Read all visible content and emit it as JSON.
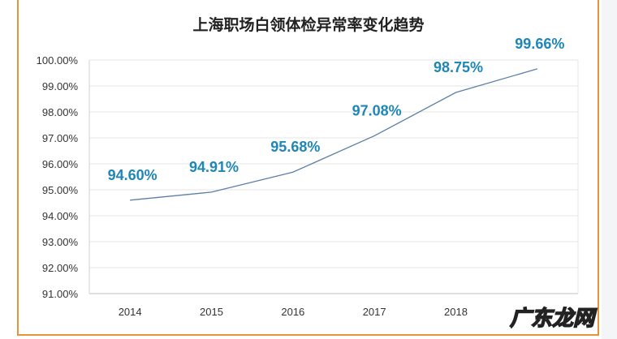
{
  "chart_data": {
    "type": "line",
    "title": "上海职场白领体检异常率变化趋势",
    "categories": [
      "2014",
      "2015",
      "2016",
      "2017",
      "2018",
      ""
    ],
    "values": [
      94.6,
      94.91,
      95.68,
      97.08,
      98.75,
      99.66
    ],
    "data_labels": [
      "94.60%",
      "94.91%",
      "95.68%",
      "97.08%",
      "98.75%",
      "99.66%"
    ],
    "yticks": [
      "91.00%",
      "92.00%",
      "93.00%",
      "94.00%",
      "95.00%",
      "96.00%",
      "97.00%",
      "98.00%",
      "99.00%",
      "100.00%"
    ],
    "ylim": [
      91,
      100
    ],
    "grid": true,
    "line_color": "#5b7fa6",
    "label_color": "#1f86b8"
  },
  "watermark": "广东龙网",
  "colors": {
    "border": "#e8923a"
  }
}
